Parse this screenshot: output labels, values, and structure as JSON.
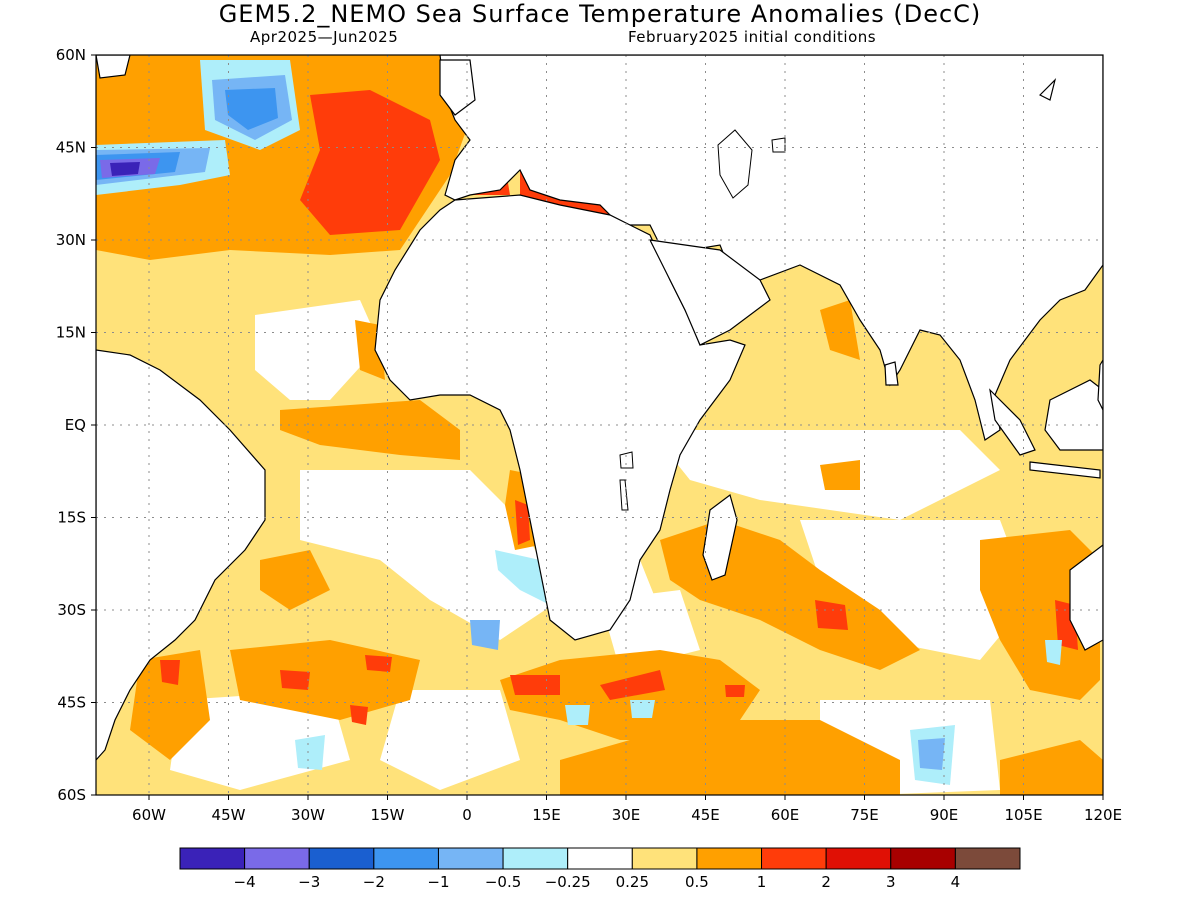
{
  "header": {
    "title": "GEM5.2_NEMO Sea Surface Temperature Anomalies (DecC)",
    "period": "Apr2025—Jun2025",
    "initial_conditions": "February2025 initial conditions"
  },
  "map": {
    "lon_range": [
      -70,
      120
    ],
    "lat_range": [
      -60,
      60
    ],
    "lon_ticks": [
      "60W",
      "45W",
      "30W",
      "15W",
      "0",
      "15E",
      "30E",
      "45E",
      "60E",
      "75E",
      "90E",
      "105E",
      "120E"
    ],
    "lat_ticks": [
      "60N",
      "45N",
      "30N",
      "15N",
      "EQ",
      "15S",
      "30S",
      "45S",
      "60S"
    ],
    "grid": "dotted"
  },
  "colorbar": {
    "colors": [
      "#3a22b8",
      "#7a6ae8",
      "#1a5fd0",
      "#3d95f0",
      "#76b5f5",
      "#aeeefa",
      "#ffffff",
      "#ffe27a",
      "#ffa000",
      "#ff3c0a",
      "#e01005",
      "#a80000",
      "#7c4a3a"
    ],
    "labels": [
      "−4",
      "−3",
      "−2",
      "−1",
      "−0.5",
      "−0.25",
      "0.25",
      "0.5",
      "1",
      "2",
      "3",
      "4"
    ]
  },
  "colors": {
    "land": "#ffffff",
    "coast": "#000000"
  }
}
